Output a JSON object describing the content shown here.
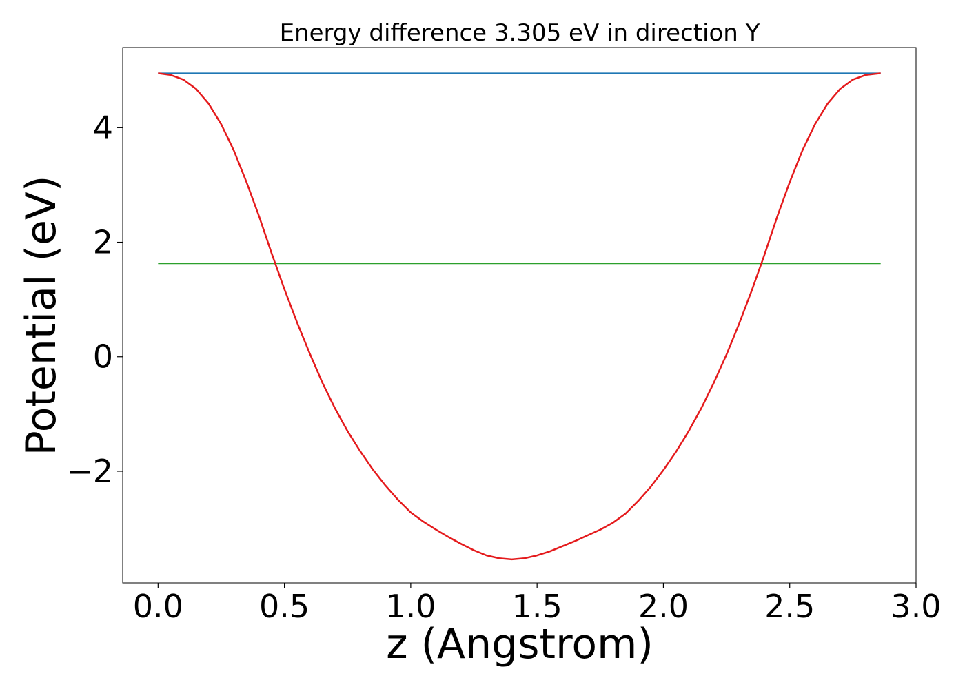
{
  "chart_data": {
    "type": "line",
    "title": "Energy difference 3.305 eV in direction Y",
    "xlabel": "z (Angstrom)",
    "ylabel": "Potential (eV)",
    "xlim": [
      -0.14,
      3.0
    ],
    "ylim": [
      -3.95,
      5.4
    ],
    "xticks": [
      0.0,
      0.5,
      1.0,
      1.5,
      2.0,
      2.5,
      3.0
    ],
    "xtick_labels": [
      "0.0",
      "0.5",
      "1.0",
      "1.5",
      "2.0",
      "2.5",
      "3.0"
    ],
    "yticks": [
      -2,
      0,
      2,
      4
    ],
    "ytick_labels": [
      "−2",
      "0",
      "2",
      "4"
    ],
    "grid": false,
    "legend": "none",
    "series": [
      {
        "color": "#e41a1c",
        "style": "solid",
        "x": [
          0.0,
          0.05,
          0.1,
          0.15,
          0.2,
          0.25,
          0.3,
          0.35,
          0.4,
          0.45,
          0.5,
          0.55,
          0.6,
          0.65,
          0.7,
          0.75,
          0.8,
          0.85,
          0.9,
          0.95,
          1.0,
          1.05,
          1.1,
          1.15,
          1.2,
          1.25,
          1.3,
          1.35,
          1.4,
          1.45,
          1.5,
          1.55,
          1.6,
          1.65,
          1.7,
          1.75,
          1.8,
          1.85,
          1.9,
          1.95,
          2.0,
          2.05,
          2.1,
          2.15,
          2.2,
          2.25,
          2.3,
          2.35,
          2.4,
          2.45,
          2.5,
          2.55,
          2.6,
          2.65,
          2.7,
          2.75,
          2.8,
          2.86
        ],
        "y": [
          4.95,
          4.92,
          4.84,
          4.68,
          4.42,
          4.06,
          3.6,
          3.05,
          2.45,
          1.8,
          1.18,
          0.6,
          0.06,
          -0.45,
          -0.9,
          -1.3,
          -1.65,
          -1.97,
          -2.25,
          -2.5,
          -2.72,
          -2.88,
          -3.02,
          -3.15,
          -3.27,
          -3.38,
          -3.47,
          -3.52,
          -3.54,
          -3.52,
          -3.47,
          -3.4,
          -3.31,
          -3.22,
          -3.12,
          -3.02,
          -2.9,
          -2.74,
          -2.52,
          -2.27,
          -1.98,
          -1.66,
          -1.3,
          -0.9,
          -0.45,
          0.04,
          0.58,
          1.16,
          1.78,
          2.44,
          3.05,
          3.6,
          4.06,
          4.42,
          4.68,
          4.84,
          4.92,
          4.95
        ]
      },
      {
        "color": "#1f77b4",
        "style": "solid",
        "x": [
          0.0,
          2.86
        ],
        "y": [
          4.95,
          4.95
        ]
      },
      {
        "color": "#2ca02c",
        "style": "solid",
        "x": [
          0.0,
          2.86
        ],
        "y": [
          1.63,
          1.63
        ]
      }
    ]
  }
}
